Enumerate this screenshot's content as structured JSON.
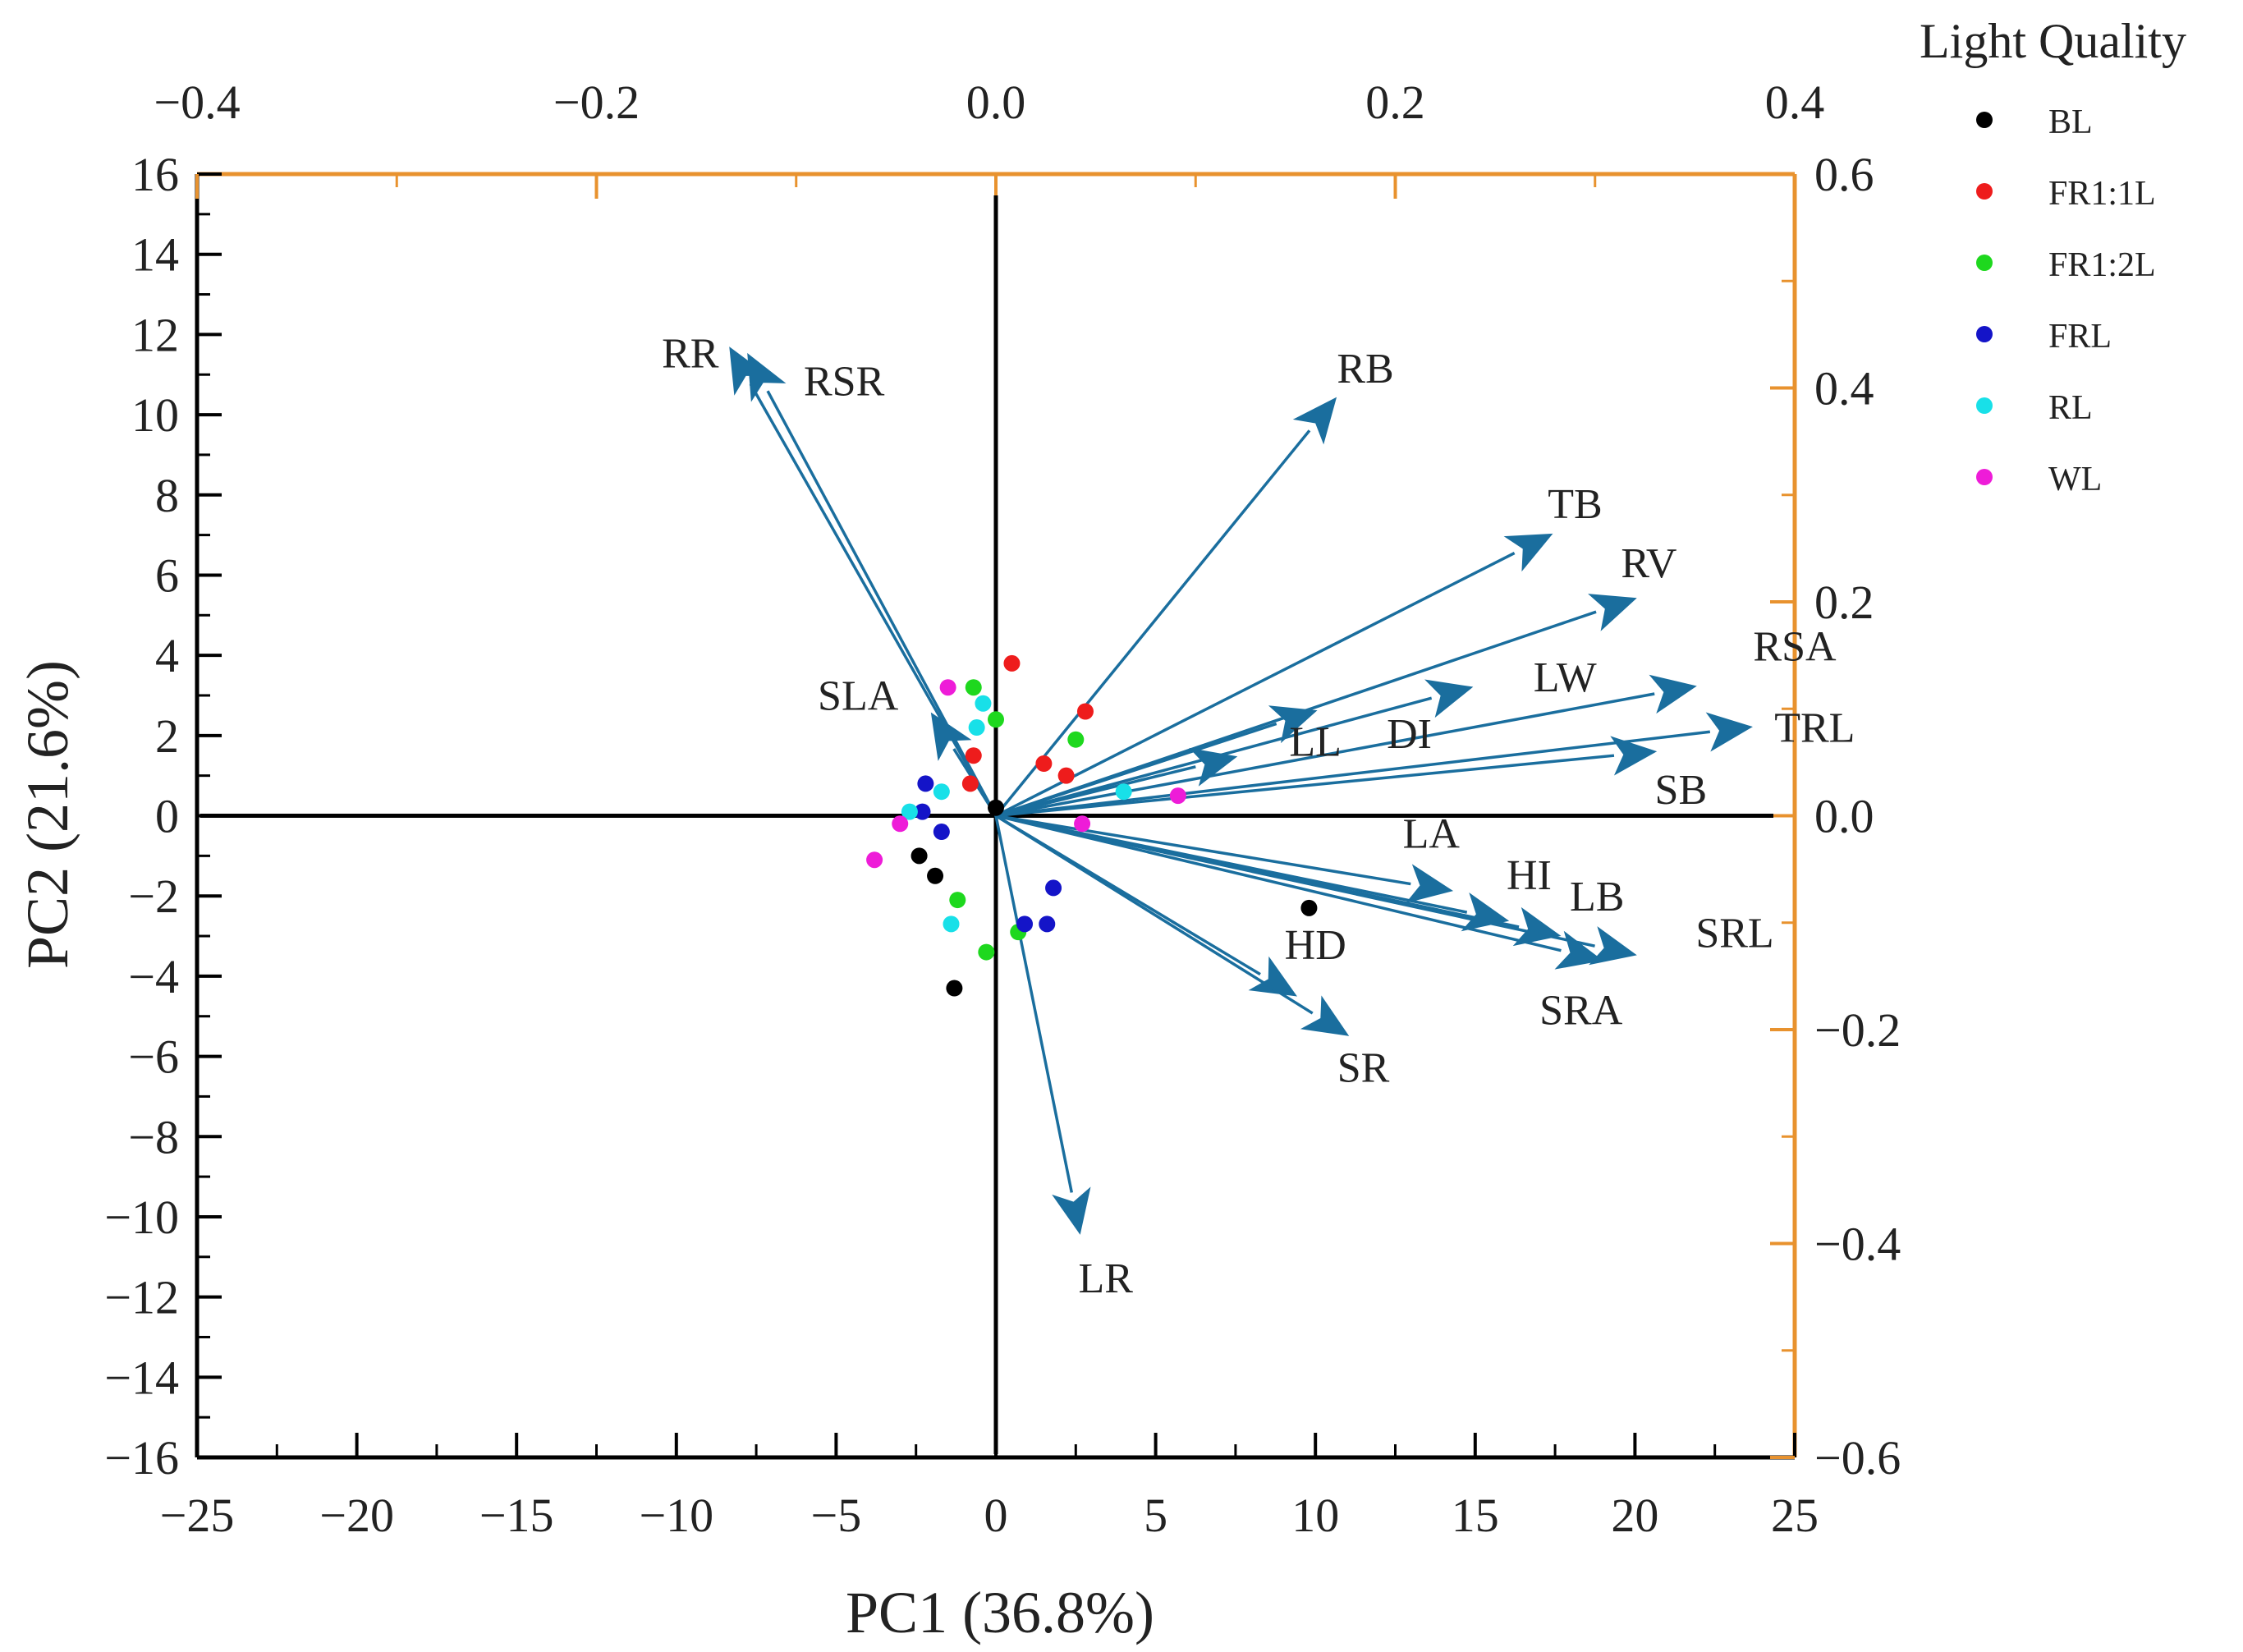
{
  "chart_data": {
    "type": "scatter",
    "subtype": "pca-biplot",
    "xlabel": "PC1 (36.8%)",
    "ylabel": "PC2 (21.6%)",
    "xlim": [
      -25,
      25
    ],
    "ylim": [
      -16,
      16
    ],
    "xticks": [
      -25,
      -20,
      -15,
      -10,
      -5,
      0,
      5,
      10,
      15,
      20,
      25
    ],
    "yticks": [
      -16,
      -14,
      -12,
      -10,
      -8,
      -6,
      -4,
      -2,
      0,
      2,
      4,
      6,
      8,
      10,
      12,
      14,
      16
    ],
    "top_axis": {
      "lim": [
        -0.4,
        0.4
      ],
      "ticks": [
        -0.4,
        -0.2,
        0.0,
        0.2,
        0.4
      ]
    },
    "right_axis": {
      "lim": [
        -0.6,
        0.6
      ],
      "ticks": [
        -0.6,
        -0.4,
        -0.2,
        0.0,
        0.2,
        0.4,
        0.6
      ]
    },
    "colors": {
      "loading_arrow": "#1a6e9e",
      "secondary_axis": "#e8922e",
      "axis": "#000000"
    },
    "legend": {
      "title": "Light Quality",
      "position": "top-right, outside plot",
      "entries": [
        {
          "name": "BL",
          "color": "#000000"
        },
        {
          "name": "FR1:1L",
          "color": "#ee1c1c"
        },
        {
          "name": "FR1:2L",
          "color": "#1ed81e"
        },
        {
          "name": "FRL",
          "color": "#1414c8"
        },
        {
          "name": "RL",
          "color": "#18e0e8"
        },
        {
          "name": "WL",
          "color": "#ee1cd8"
        }
      ]
    },
    "series": [
      {
        "name": "BL",
        "color": "#000000",
        "points": [
          [
            -2.4,
            -1.0
          ],
          [
            -1.9,
            -1.5
          ],
          [
            -1.3,
            -4.3
          ],
          [
            9.8,
            -2.3
          ],
          [
            0.0,
            0.2
          ]
        ]
      },
      {
        "name": "FR1:1L",
        "color": "#ee1c1c",
        "points": [
          [
            0.5,
            3.8
          ],
          [
            2.8,
            2.6
          ],
          [
            -0.7,
            1.5
          ],
          [
            -0.8,
            0.8
          ],
          [
            1.5,
            1.3
          ],
          [
            2.2,
            1.0
          ]
        ]
      },
      {
        "name": "FR1:2L",
        "color": "#1ed81e",
        "points": [
          [
            -0.7,
            3.2
          ],
          [
            0.0,
            2.4
          ],
          [
            2.5,
            1.9
          ],
          [
            -1.2,
            -2.1
          ],
          [
            -0.3,
            -3.4
          ],
          [
            0.7,
            -2.9
          ]
        ]
      },
      {
        "name": "FRL",
        "color": "#1414c8",
        "points": [
          [
            -2.2,
            0.8
          ],
          [
            -2.3,
            0.1
          ],
          [
            -1.7,
            -0.4
          ],
          [
            1.8,
            -1.8
          ],
          [
            0.9,
            -2.7
          ],
          [
            1.6,
            -2.7
          ]
        ]
      },
      {
        "name": "RL",
        "color": "#18e0e8",
        "points": [
          [
            -0.4,
            2.8
          ],
          [
            -0.6,
            2.2
          ],
          [
            -1.7,
            0.6
          ],
          [
            -2.7,
            0.1
          ],
          [
            -1.4,
            -2.7
          ],
          [
            4.0,
            0.6
          ]
        ]
      },
      {
        "name": "WL",
        "color": "#ee1cd8",
        "points": [
          [
            -1.5,
            3.2
          ],
          [
            -3.0,
            -0.2
          ],
          [
            -3.8,
            -1.1
          ],
          [
            2.7,
            -0.2
          ],
          [
            5.7,
            0.5
          ]
        ]
      }
    ],
    "loadings": [
      {
        "name": "RR",
        "pc1": -0.133,
        "pc2": 0.437,
        "label_pc1": -0.153,
        "label_pc2": 0.433
      },
      {
        "name": "RSR",
        "pc1": -0.124,
        "pc2": 0.431,
        "label_pc1": -0.076,
        "label_pc2": 0.407
      },
      {
        "name": "SLA",
        "pc1": -0.032,
        "pc2": 0.095,
        "label_pc1": -0.069,
        "label_pc2": 0.113
      },
      {
        "name": "RB",
        "pc1": 0.17,
        "pc2": 0.39,
        "label_pc1": 0.185,
        "label_pc2": 0.419
      },
      {
        "name": "TB",
        "pc1": 0.278,
        "pc2": 0.263,
        "label_pc1": 0.29,
        "label_pc2": 0.292
      },
      {
        "name": "RV",
        "pc1": 0.32,
        "pc2": 0.203,
        "label_pc1": 0.327,
        "label_pc2": 0.237
      },
      {
        "name": "LW",
        "pc1": 0.238,
        "pc2": 0.12,
        "label_pc1": 0.285,
        "label_pc2": 0.13
      },
      {
        "name": "RSA",
        "pc1": 0.35,
        "pc2": 0.121,
        "label_pc1": 0.4,
        "label_pc2": 0.159
      },
      {
        "name": "DI",
        "pc1": 0.16,
        "pc2": 0.098,
        "label_pc1": 0.207,
        "label_pc2": 0.077
      },
      {
        "name": "TRL",
        "pc1": 0.378,
        "pc2": 0.083,
        "label_pc1": 0.41,
        "label_pc2": 0.083
      },
      {
        "name": "LL",
        "pc1": 0.12,
        "pc2": 0.055,
        "label_pc1": 0.16,
        "label_pc2": 0.07
      },
      {
        "name": "SB",
        "pc1": 0.33,
        "pc2": 0.06,
        "label_pc1": 0.343,
        "label_pc2": 0.025
      },
      {
        "name": "LA",
        "pc1": 0.228,
        "pc2": -0.07,
        "label_pc1": 0.218,
        "label_pc2": -0.016
      },
      {
        "name": "HI",
        "pc1": 0.256,
        "pc2": -0.098,
        "label_pc1": 0.267,
        "label_pc2": -0.055
      },
      {
        "name": "LB",
        "pc1": 0.282,
        "pc2": -0.112,
        "label_pc1": 0.301,
        "label_pc2": -0.075
      },
      {
        "name": "SRL",
        "pc1": 0.32,
        "pc2": -0.13,
        "label_pc1": 0.37,
        "label_pc2": -0.109
      },
      {
        "name": "SRA",
        "pc1": 0.303,
        "pc2": -0.135,
        "label_pc1": 0.293,
        "label_pc2": -0.181
      },
      {
        "name": "HD",
        "pc1": 0.15,
        "pc2": -0.168,
        "label_pc1": 0.16,
        "label_pc2": -0.12
      },
      {
        "name": "SR",
        "pc1": 0.176,
        "pc2": -0.205,
        "label_pc1": 0.184,
        "label_pc2": -0.235
      },
      {
        "name": "LR",
        "pc1": 0.042,
        "pc2": -0.39,
        "label_pc1": 0.055,
        "label_pc2": -0.432
      }
    ]
  }
}
